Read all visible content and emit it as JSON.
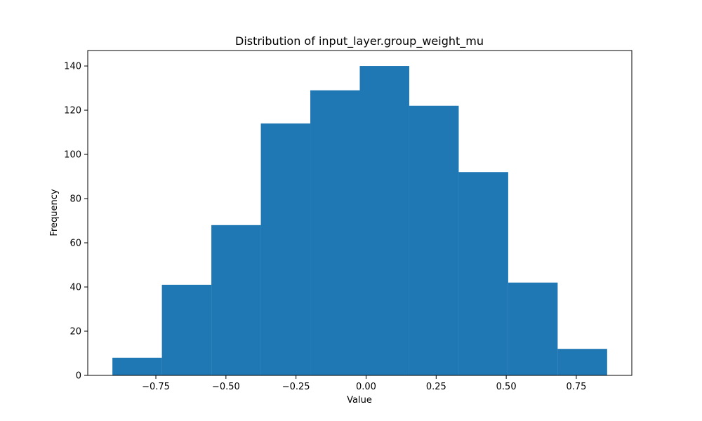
{
  "chart_data": {
    "type": "bar",
    "title": "Distribution of input_layer.group_weight_mu",
    "xlabel": "Value",
    "ylabel": "Frequency",
    "bin_edges": [
      -0.905,
      -0.7285,
      -0.552,
      -0.3755,
      -0.199,
      -0.0225,
      0.154,
      0.3305,
      0.507,
      0.6835,
      0.86
    ],
    "values": [
      8,
      41,
      68,
      114,
      129,
      140,
      122,
      92,
      42,
      12
    ],
    "xlim": [
      -0.993,
      0.948
    ],
    "ylim": [
      0,
      147
    ],
    "x_ticks": [
      -0.75,
      -0.5,
      -0.25,
      0.0,
      0.25,
      0.5,
      0.75
    ],
    "x_tick_labels": [
      "−0.75",
      "−0.50",
      "−0.25",
      "0.00",
      "0.25",
      "0.50",
      "0.75"
    ],
    "y_ticks": [
      0,
      20,
      40,
      60,
      80,
      100,
      120,
      140
    ],
    "y_tick_labels": [
      "0",
      "20",
      "40",
      "60",
      "80",
      "100",
      "120",
      "140"
    ],
    "grid": false,
    "colors": {
      "bar": "#1f77b4",
      "axes": "#000000",
      "background": "#ffffff"
    }
  }
}
